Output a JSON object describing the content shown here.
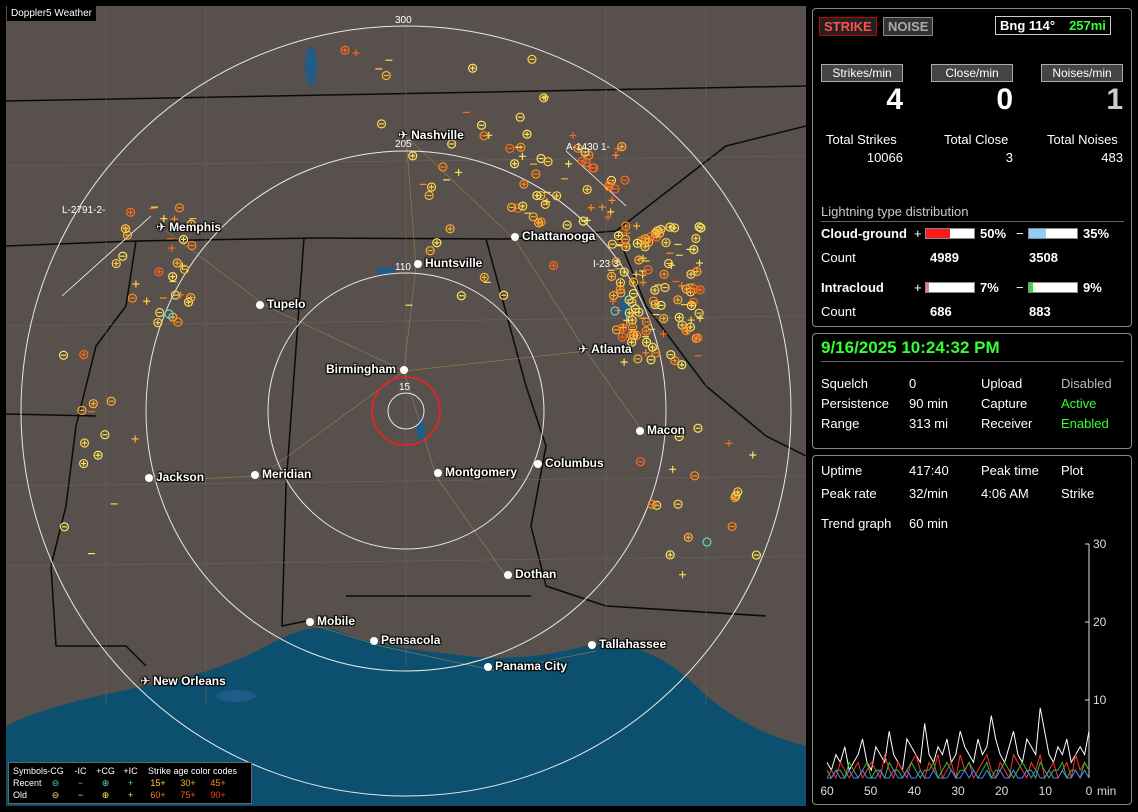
{
  "map": {
    "title": "Doppler5 Weather",
    "ring_labels": [
      "300",
      "205",
      "110",
      "15"
    ],
    "cities": [
      {
        "name": "Nashville",
        "icon": "airport"
      },
      {
        "name": "Memphis",
        "icon": "airport"
      },
      {
        "name": "Chattanooga",
        "icon": "dot"
      },
      {
        "name": "Huntsville",
        "icon": "dot"
      },
      {
        "name": "Tupelo",
        "icon": "dot"
      },
      {
        "name": "Atlanta",
        "icon": "airport"
      },
      {
        "name": "Birmingham",
        "icon": "dot"
      },
      {
        "name": "Macon",
        "icon": "dot"
      },
      {
        "name": "Jackson",
        "icon": "dot"
      },
      {
        "name": "Meridian",
        "icon": "dot"
      },
      {
        "name": "Montgomery",
        "icon": "dot"
      },
      {
        "name": "Columbus",
        "icon": "dot"
      },
      {
        "name": "Dothan",
        "icon": "dot"
      },
      {
        "name": "Mobile",
        "icon": "dot"
      },
      {
        "name": "Pensacola",
        "icon": "dot"
      },
      {
        "name": "Tallahassee",
        "icon": "dot"
      },
      {
        "name": "Panama City",
        "icon": "dot"
      },
      {
        "name": "New Orleans",
        "icon": "airport"
      }
    ],
    "sensor_labels": [
      "A-1430  1-",
      "L-2791-2-",
      "I-23   3-"
    ],
    "legend": {
      "row1": [
        "Symbols",
        "-CG",
        "-IC",
        "+CG",
        "+IC",
        "Strike age color codes"
      ],
      "row2": [
        "Recent",
        "⊖",
        "−",
        "⊕",
        "+",
        "15+",
        "30+",
        "45+"
      ],
      "row3": [
        "Old",
        "⊖",
        "−",
        "⊕",
        "+",
        "60+",
        "75+",
        "90+"
      ]
    }
  },
  "status": {
    "mode_strike": "STRIKE",
    "mode_noise": "NOISE",
    "bearing_label": "Bng 114°",
    "bearing_distance": "257mi",
    "strikes_per_min_label": "Strikes/min",
    "close_per_min_label": "Close/min",
    "noises_per_min_label": "Noises/min",
    "strikes_per_min": "4",
    "close_per_min": "0",
    "noises_per_min": "1",
    "total_strikes_label": "Total Strikes",
    "total_close_label": "Total Close",
    "total_noises_label": "Total Noises",
    "total_strikes": "10066",
    "total_close": "3",
    "total_noises": "483",
    "distribution_title": "Lightning type distribution",
    "cg_label": "Cloud-ground",
    "ic_label": "Intracloud",
    "count_label": "Count",
    "plus": "+",
    "minus": "−",
    "cg_pos_pct": "50%",
    "cg_neg_pct": "35%",
    "cg_pos_count": "4989",
    "cg_neg_count": "3508",
    "ic_pos_pct": "7%",
    "ic_neg_pct": "9%",
    "ic_pos_count": "686",
    "ic_neg_count": "883",
    "cg_pos_frac": 0.5,
    "cg_neg_frac": 0.35,
    "ic_pos_frac": 0.07,
    "ic_neg_frac": 0.09
  },
  "settings": {
    "datetime": "9/16/2025 10:24:32 PM",
    "squelch_label": "Squelch",
    "squelch": "0",
    "persistence_label": "Persistence",
    "persistence": "90 min",
    "range_label": "Range",
    "range": "313 mi",
    "upload_label": "Upload",
    "upload": "Disabled",
    "capture_label": "Capture",
    "capture": "Active",
    "receiver_label": "Receiver",
    "receiver": "Enabled"
  },
  "stats": {
    "uptime_label": "Uptime",
    "uptime": "417:40",
    "peak_time_label": "Peak time",
    "peak_time": "4:06 AM",
    "plot_label": "Plot",
    "plot": "Strike",
    "peak_rate_label": "Peak rate",
    "peak_rate": "32/min",
    "trend_label": "Trend graph",
    "trend": "60 min"
  },
  "chart_data": {
    "type": "line",
    "xlabel": "min",
    "x_ticks": [
      "60",
      "50",
      "40",
      "30",
      "20",
      "10",
      "0"
    ],
    "y_ticks": [
      "30",
      "20",
      "10"
    ],
    "ylim": [
      0,
      30
    ],
    "xlim": [
      60,
      0
    ],
    "series": [
      {
        "color": "#ffffff",
        "values": [
          2,
          1,
          3,
          2,
          4,
          1,
          2,
          3,
          5,
          2,
          1,
          4,
          3,
          2,
          6,
          3,
          2,
          1,
          5,
          4,
          3,
          2,
          7,
          3,
          2,
          4,
          3,
          5,
          2,
          3,
          6,
          4,
          3,
          2,
          5,
          3,
          4,
          8,
          5,
          3,
          2,
          4,
          6,
          3,
          2,
          5,
          4,
          3,
          9,
          6,
          3,
          2,
          4,
          3,
          5,
          2,
          3,
          4,
          3,
          6
        ]
      },
      {
        "color": "#ff3030",
        "values": [
          0,
          1,
          0,
          2,
          1,
          0,
          1,
          2,
          0,
          1,
          2,
          1,
          0,
          3,
          1,
          0,
          2,
          1,
          0,
          2,
          3,
          1,
          0,
          2,
          1,
          3,
          0,
          1,
          2,
          0,
          3,
          1,
          2,
          0,
          1,
          2,
          3,
          1,
          0,
          2,
          1,
          0,
          3,
          2,
          1,
          0,
          2,
          1,
          3,
          0,
          1,
          2,
          0,
          1,
          2,
          0,
          3,
          1,
          2,
          1
        ]
      },
      {
        "color": "#30c030",
        "values": [
          1,
          0,
          1,
          1,
          0,
          2,
          1,
          0,
          1,
          2,
          0,
          1,
          1,
          0,
          2,
          1,
          1,
          0,
          1,
          2,
          1,
          0,
          1,
          1,
          2,
          0,
          1,
          2,
          1,
          0,
          1,
          1,
          2,
          1,
          0,
          1,
          2,
          0,
          1,
          1,
          2,
          1,
          0,
          1,
          2,
          1,
          1,
          0,
          2,
          1,
          0,
          1,
          1,
          2,
          0,
          1,
          1,
          0,
          2,
          1
        ]
      },
      {
        "color": "#5080ff",
        "values": [
          0,
          0,
          1,
          0,
          0,
          1,
          0,
          0,
          1,
          0,
          0,
          0,
          1,
          0,
          0,
          1,
          0,
          0,
          1,
          0,
          0,
          1,
          0,
          0,
          1,
          0,
          0,
          0,
          1,
          0,
          0,
          1,
          0,
          1,
          0,
          0,
          1,
          0,
          0,
          1,
          0,
          0,
          1,
          0,
          0,
          1,
          0,
          1,
          0,
          0,
          1,
          0,
          0,
          1,
          0,
          0,
          1,
          0,
          1,
          0
        ]
      }
    ]
  }
}
